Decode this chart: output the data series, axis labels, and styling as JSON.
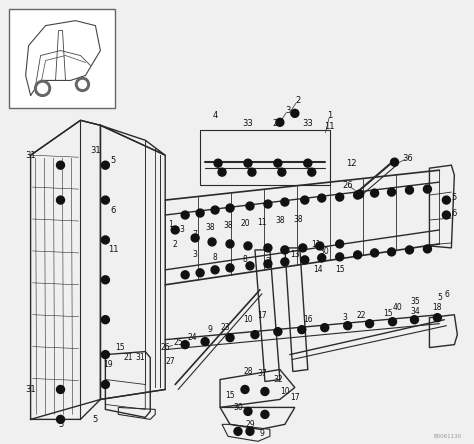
{
  "bg_color": "#f0f0f0",
  "line_color": "#2a2a2a",
  "dot_color": "#111111",
  "label_color": "#111111",
  "border_color": "#555555",
  "watermark": "B0061130",
  "fig_width": 4.74,
  "fig_height": 4.44,
  "dpi": 100
}
